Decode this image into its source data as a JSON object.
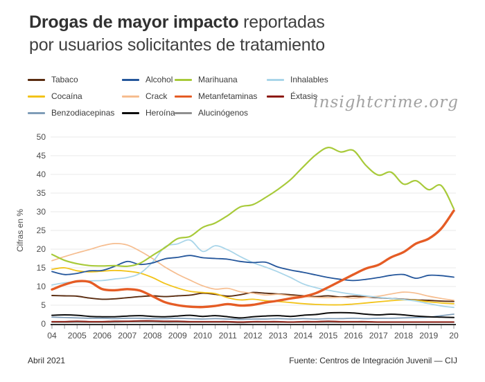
{
  "header": {
    "title_bold": "Drogas de mayor impacto",
    "title_regular": " reportadas",
    "title_line2": "por usuarios solicitantes de tratamiento"
  },
  "watermark": {
    "text": "insightcrime.org"
  },
  "footer": {
    "date": "Abril 2021",
    "source": "Fuente: Centros de Integración Juvenil — CIJ"
  },
  "chart_data": {
    "type": "line",
    "title": "Drogas de mayor impacto reportadas por usuarios solicitantes de tratamiento",
    "ylabel": "Cifras en %",
    "ylim": [
      0,
      50
    ],
    "yticks": [
      0,
      5,
      10,
      15,
      20,
      25,
      30,
      35,
      40,
      45,
      50
    ],
    "grid": "horizontal",
    "legend_position": "top",
    "x_start": 2004,
    "x_end": 2020,
    "x_step": 0.5,
    "x_ticks": [
      {
        "year": 2004,
        "label": "04"
      },
      {
        "year": 2005,
        "label": "2005"
      },
      {
        "year": 2006,
        "label": "2006"
      },
      {
        "year": 2007,
        "label": "2007"
      },
      {
        "year": 2008,
        "label": "2008"
      },
      {
        "year": 2009,
        "label": "2009"
      },
      {
        "year": 2010,
        "label": "2010"
      },
      {
        "year": 2011,
        "label": "2011"
      },
      {
        "year": 2012,
        "label": "2012"
      },
      {
        "year": 2013,
        "label": "2013"
      },
      {
        "year": 2014,
        "label": "2014"
      },
      {
        "year": 2015,
        "label": "2015"
      },
      {
        "year": 2016,
        "label": "2016"
      },
      {
        "year": 2017,
        "label": "2017"
      },
      {
        "year": 2018,
        "label": "2018"
      },
      {
        "year": 2019,
        "label": "2019"
      },
      {
        "year": 2020,
        "label": "20"
      }
    ],
    "series": [
      {
        "name": "Tabaco",
        "color": "#5a2c10",
        "width": 1.9,
        "z": 5,
        "values": [
          7.6,
          7.5,
          7.4,
          6.9,
          6.6,
          6.7,
          7.0,
          7.3,
          7.5,
          7.3,
          7.5,
          7.7,
          8.2,
          7.9,
          7.4,
          7.8,
          8.4,
          8.2,
          8.0,
          7.8,
          7.5,
          7.3,
          7.5,
          7.2,
          7.4,
          7.2,
          7.0,
          6.8,
          6.6,
          6.4,
          6.3,
          6.1,
          6.0
        ]
      },
      {
        "name": "Alcohol",
        "color": "#24569b",
        "width": 1.8,
        "z": 9,
        "values": [
          14.0,
          13.2,
          13.5,
          14.2,
          14.3,
          15.4,
          16.7,
          15.9,
          16.3,
          17.4,
          17.8,
          18.3,
          17.7,
          17.5,
          17.3,
          16.7,
          16.4,
          16.5,
          15.2,
          14.4,
          13.8,
          13.1,
          12.4,
          11.9,
          11.6,
          11.9,
          12.4,
          13.0,
          13.2,
          12.2,
          13.0,
          12.9,
          12.5
        ]
      },
      {
        "name": "Marihuana",
        "color": "#a8ca3a",
        "width": 2.2,
        "z": 10,
        "values": [
          18.6,
          17.0,
          16.1,
          15.6,
          15.5,
          15.6,
          15.4,
          16.2,
          18.3,
          20.4,
          22.8,
          23.4,
          25.8,
          27.0,
          29.0,
          31.3,
          31.9,
          33.8,
          36.0,
          38.6,
          42.0,
          45.2,
          47.2,
          46.0,
          46.4,
          42.4,
          39.8,
          40.6,
          37.4,
          38.3,
          35.9,
          37.0,
          30.8
        ]
      },
      {
        "name": "Inhalables",
        "color": "#a9d5e9",
        "width": 1.8,
        "z": 8,
        "values": [
          10.4,
          11.0,
          11.2,
          11.5,
          11.6,
          12.0,
          12.4,
          13.5,
          16.5,
          20.6,
          21.4,
          22.4,
          19.4,
          20.9,
          19.8,
          18.0,
          16.4,
          15.2,
          13.9,
          12.4,
          10.7,
          9.7,
          9.0,
          8.4,
          7.9,
          7.5,
          7.1,
          6.8,
          6.5,
          6.1,
          5.4,
          4.8,
          4.4
        ]
      },
      {
        "name": "Cocaína",
        "color": "#f2c319",
        "width": 1.8,
        "z": 6,
        "values": [
          14.6,
          15.0,
          14.2,
          13.9,
          14.1,
          14.3,
          14.1,
          13.6,
          12.4,
          10.8,
          9.6,
          8.7,
          8.4,
          8.1,
          7.0,
          6.4,
          6.6,
          6.2,
          6.0,
          5.7,
          5.4,
          5.2,
          5.1,
          5.1,
          5.3,
          5.6,
          5.9,
          6.2,
          6.4,
          6.3,
          5.9,
          5.6,
          5.4
        ]
      },
      {
        "name": "Crack",
        "color": "#f6bd8f",
        "width": 1.7,
        "z": 7,
        "values": [
          16.9,
          18.0,
          19.0,
          19.9,
          20.9,
          21.5,
          21.1,
          19.5,
          17.5,
          15.2,
          13.3,
          11.7,
          10.2,
          9.3,
          9.5,
          8.6,
          8.2,
          7.7,
          7.9,
          7.5,
          7.3,
          7.1,
          7.0,
          7.1,
          6.9,
          7.1,
          7.4,
          8.0,
          8.5,
          8.2,
          7.4,
          6.8,
          6.3
        ]
      },
      {
        "name": "Metanfetaminas",
        "color": "#e55c25",
        "width": 3.4,
        "z": 11,
        "values": [
          9.2,
          10.5,
          11.4,
          11.2,
          9.3,
          9.0,
          9.3,
          8.9,
          7.4,
          5.8,
          5.0,
          4.6,
          4.5,
          4.8,
          5.3,
          4.9,
          5.1,
          5.7,
          6.2,
          6.8,
          7.3,
          8.2,
          9.8,
          11.5,
          13.2,
          14.8,
          15.8,
          17.8,
          19.2,
          21.5,
          22.8,
          25.5,
          30.3
        ]
      },
      {
        "name": "Éxtasis",
        "color": "#8c190e",
        "width": 1.9,
        "z": 2,
        "values": [
          0.6,
          0.6,
          0.7,
          0.6,
          0.6,
          0.7,
          0.7,
          0.8,
          0.8,
          0.7,
          0.7,
          0.6,
          0.6,
          0.6,
          0.6,
          0.5,
          0.6,
          0.6,
          0.6,
          0.5,
          0.6,
          0.6,
          0.7,
          0.6,
          0.6,
          0.6,
          0.5,
          0.5,
          0.5,
          0.5,
          0.5,
          0.5,
          0.5
        ]
      },
      {
        "name": "Benzodiacepinas",
        "color": "#7f9db8",
        "width": 1.7,
        "z": 3,
        "values": [
          1.8,
          1.7,
          1.6,
          1.5,
          1.5,
          1.4,
          1.5,
          1.5,
          1.4,
          1.4,
          1.5,
          1.4,
          1.3,
          1.4,
          1.3,
          1.2,
          1.3,
          1.3,
          1.4,
          1.3,
          1.4,
          1.3,
          1.4,
          1.4,
          1.5,
          1.4,
          1.5,
          1.5,
          1.6,
          1.7,
          1.8,
          2.2,
          2.6
        ]
      },
      {
        "name": "Heroína",
        "color": "#0c0c0c",
        "width": 2.0,
        "z": 4,
        "values": [
          2.3,
          2.4,
          2.3,
          2.0,
          1.9,
          1.9,
          2.1,
          2.2,
          2.0,
          1.9,
          2.1,
          2.3,
          2.0,
          2.2,
          1.9,
          1.6,
          1.9,
          2.1,
          2.2,
          2.0,
          2.3,
          2.5,
          2.9,
          3.0,
          2.9,
          2.6,
          2.4,
          2.6,
          2.4,
          2.1,
          1.9,
          1.8,
          1.7
        ]
      },
      {
        "name": "Alucinógenos",
        "color": "#8f8f8f",
        "width": 1.7,
        "z": 1,
        "values": [
          0.4,
          0.4,
          0.4,
          0.4,
          0.4,
          0.4,
          0.5,
          0.5,
          0.5,
          0.4,
          0.4,
          0.4,
          0.4,
          0.4,
          0.4,
          0.3,
          0.4,
          0.4,
          0.4,
          0.4,
          0.4,
          0.4,
          0.4,
          0.4,
          0.4,
          0.4,
          0.4,
          0.4,
          0.4,
          0.4,
          0.4,
          0.4,
          0.4
        ]
      }
    ]
  }
}
